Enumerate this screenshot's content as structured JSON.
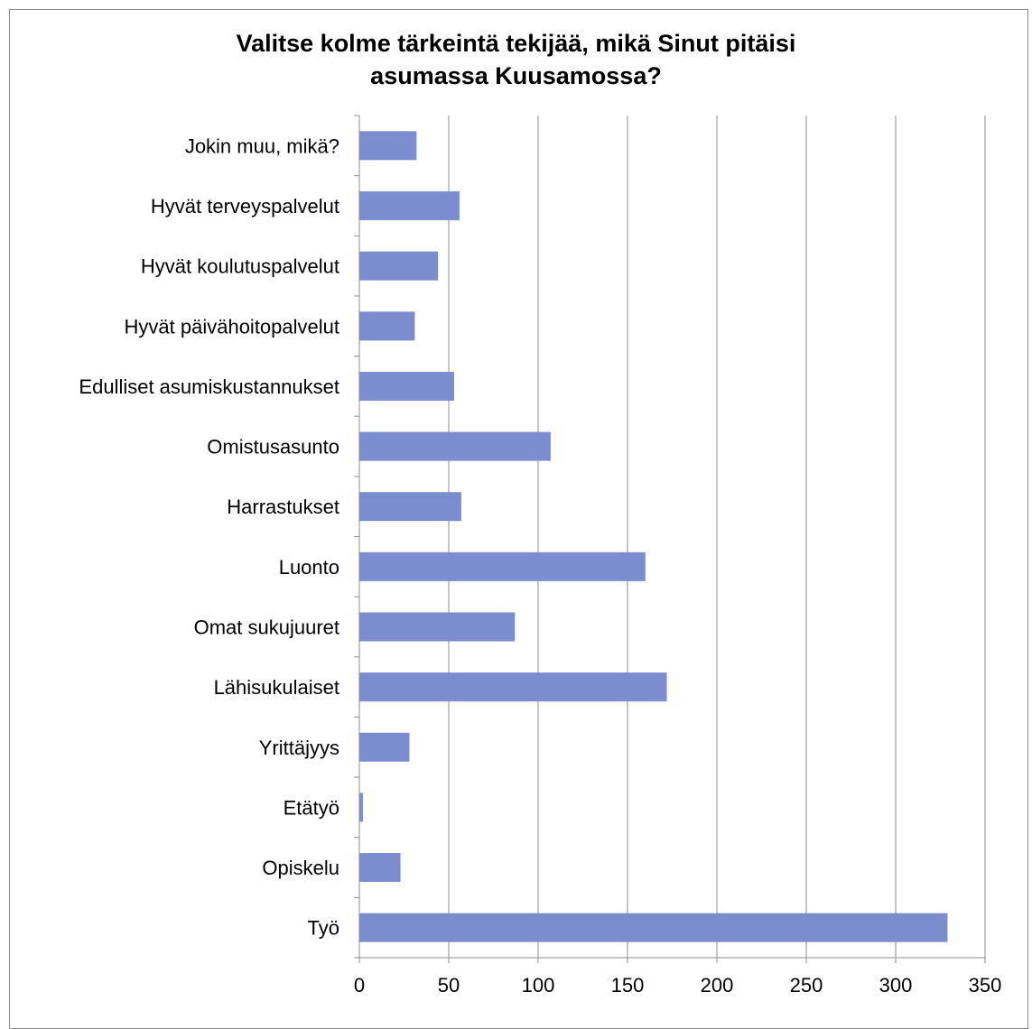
{
  "chart_data": {
    "type": "bar",
    "orientation": "horizontal",
    "title": "Valitse kolme tärkeintä tekijää, mikä Sinut pitäisi\nasumassa Kuusamossa?",
    "categories": [
      "Työ",
      "Opiskelu",
      "Etätyö",
      "Yrittäjyys",
      "Lähisukulaiset",
      "Omat sukujuuret",
      "Luonto",
      "Harrastukset",
      "Omistusasunto",
      "Edulliset asumiskustannukset",
      "Hyvät päivähoitopalvelut",
      "Hyvät koulutuspalvelut",
      "Hyvät terveyspalvelut",
      "Jokin muu, mikä?"
    ],
    "values": [
      329,
      23,
      2,
      28,
      172,
      87,
      160,
      57,
      107,
      53,
      31,
      44,
      56,
      32
    ],
    "xlim": [
      0,
      350
    ],
    "xticks": [
      "0",
      "50",
      "100",
      "150",
      "200",
      "250",
      "300",
      "350"
    ],
    "grid": true,
    "bar_color": "#7b8ccf",
    "grid_color": "#8c8c8c",
    "xlabel": "",
    "ylabel": ""
  }
}
